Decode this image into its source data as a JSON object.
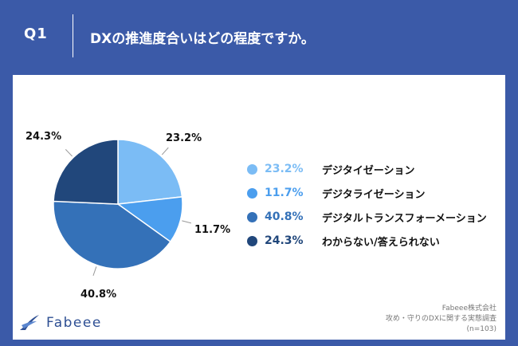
{
  "header": {
    "question_no": "Q1",
    "question": "DXの推進度合いはどの程度ですか。"
  },
  "chart_data": {
    "type": "pie",
    "categories": [
      "デジタイゼーション",
      "デジタライゼーション",
      "デジタルトランスフォーメーション",
      "わからない/答えられない"
    ],
    "values": [
      23.2,
      11.7,
      40.8,
      24.3
    ],
    "value_labels": [
      "23.2%",
      "11.7%",
      "40.8%",
      "24.3%"
    ],
    "colors": [
      "#7bbcf5",
      "#4b9eee",
      "#3471b8",
      "#21477b"
    ]
  },
  "legend": [
    {
      "pct": "23.2%",
      "label": "デジタイゼーション",
      "color": "#7bbcf5"
    },
    {
      "pct": "11.7%",
      "label": "デジタライゼーション",
      "color": "#4b9eee"
    },
    {
      "pct": "40.8%",
      "label": "デジタルトランスフォーメーション",
      "color": "#3471b8"
    },
    {
      "pct": "24.3%",
      "label": "わからない/答えられない",
      "color": "#21477b"
    }
  ],
  "footer": {
    "brand": "Fabeee",
    "source_lines": [
      "Fabeee株式会社",
      "攻め・守りのDXに関する実態調査",
      "(n=103)"
    ]
  }
}
